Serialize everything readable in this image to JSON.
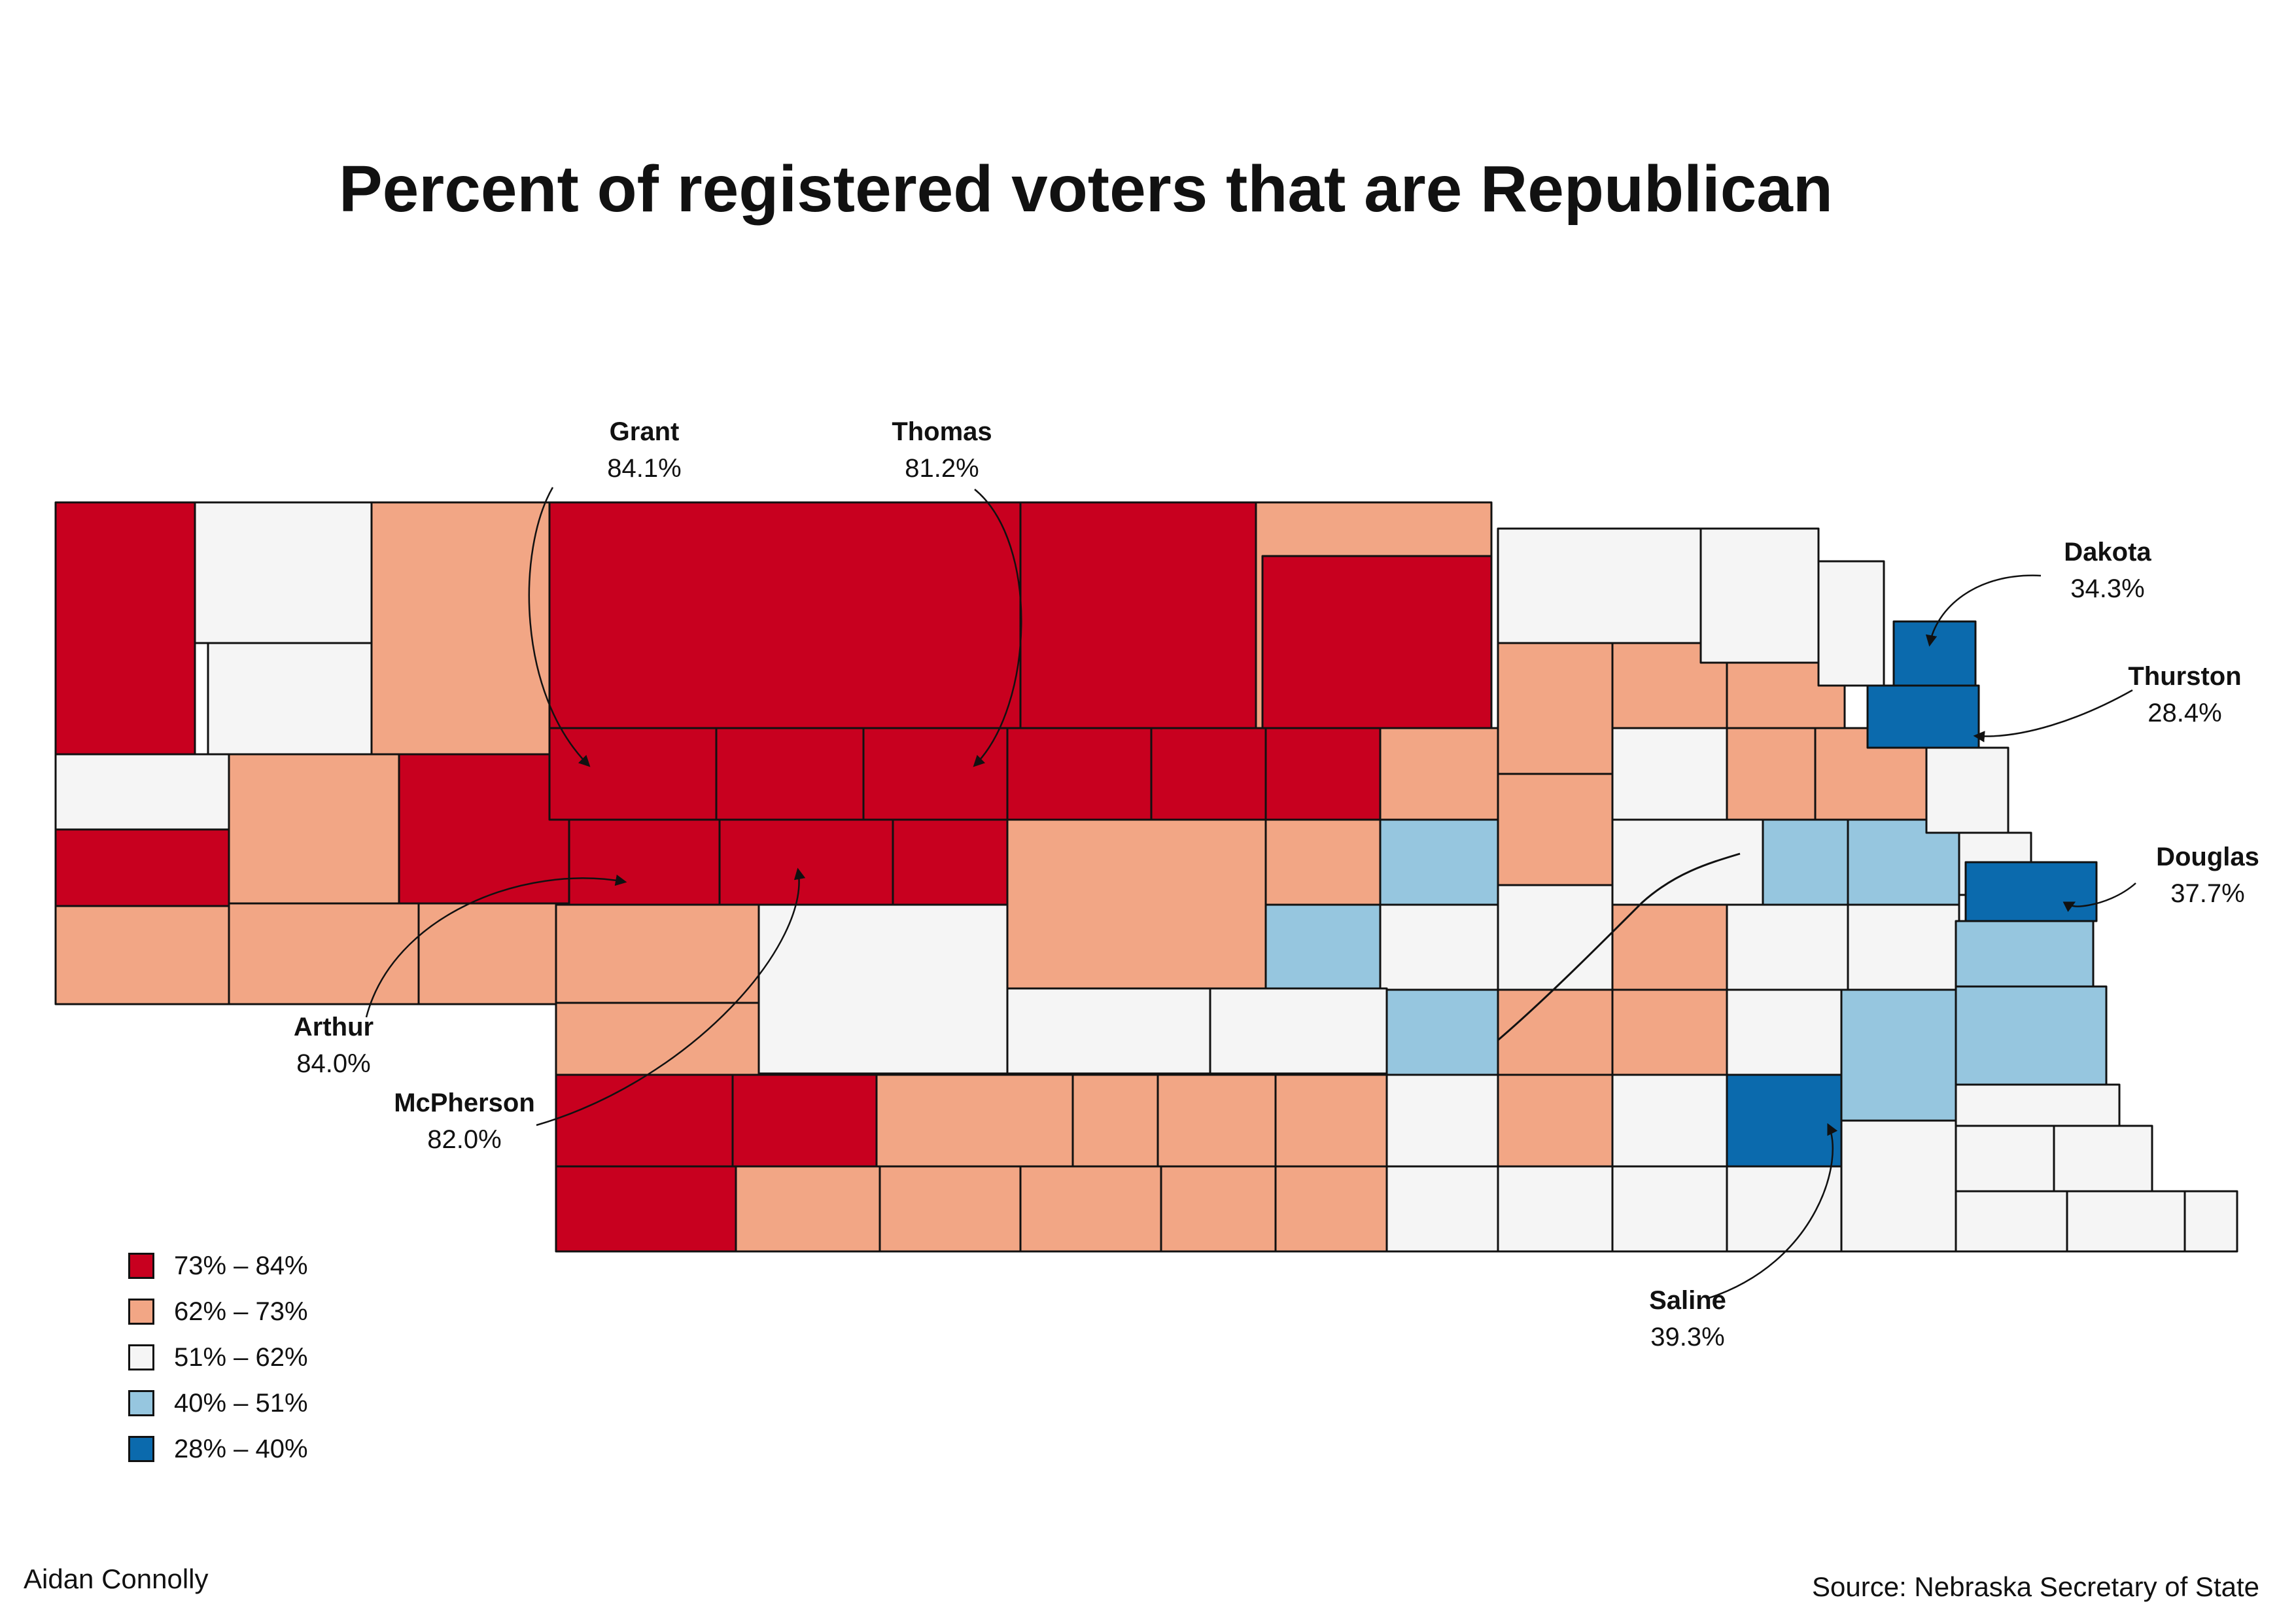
{
  "title": "Percent of registered voters that are Republican",
  "colors": {
    "73-84": "#c8001f",
    "62-73": "#f2a685",
    "51-62": "#f5f5f5",
    "40-51": "#96c6df",
    "28-40": "#0b6aad",
    "outline": "#111111"
  },
  "legend": [
    {
      "label": "73% – 84%",
      "bin": "73-84"
    },
    {
      "label": "62% – 73%",
      "bin": "62-73"
    },
    {
      "label": "51% – 62%",
      "bin": "51-62"
    },
    {
      "label": "40% – 51%",
      "bin": "40-51"
    },
    {
      "label": "28% – 40%",
      "bin": "28-40"
    }
  ],
  "callouts": {
    "grant": {
      "name": "Grant",
      "value": "84.1%"
    },
    "thomas": {
      "name": "Thomas",
      "value": "81.2%"
    },
    "dakota": {
      "name": "Dakota",
      "value": "34.3%"
    },
    "thurston": {
      "name": "Thurston",
      "value": "28.4%"
    },
    "douglas": {
      "name": "Douglas",
      "value": "37.7%"
    },
    "arthur": {
      "name": "Arthur",
      "value": "84.0%"
    },
    "mcpherson": {
      "name": "McPherson",
      "value": "82.0%"
    },
    "saline": {
      "name": "Saline",
      "value": "39.3%"
    }
  },
  "author": "Aidan Connolly",
  "source": "Source: Nebraska Secretary of State"
}
